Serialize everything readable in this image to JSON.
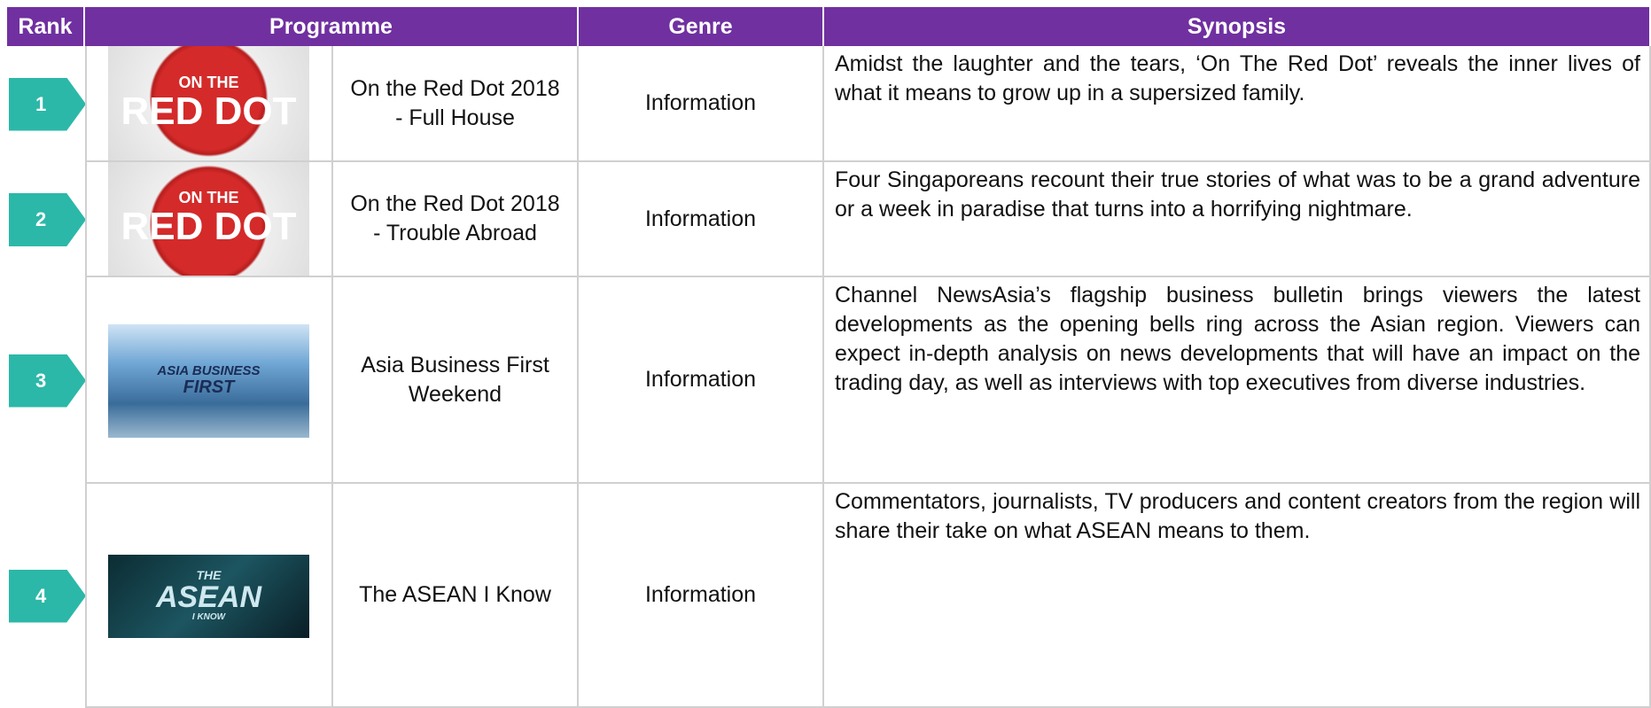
{
  "table": {
    "columns": [
      "Rank",
      "Programme",
      "Genre",
      "Synopsis"
    ],
    "rows": [
      {
        "rank": "1",
        "thumbnail": [
          "ON THE",
          "RED DOT"
        ],
        "programme": "On the Red Dot 2018 - Full House",
        "genre": "Information",
        "synopsis": "Amidst the laughter and the tears, ‘On The Red Dot’ reveals the inner lives of what it means to grow up in a supersized family."
      },
      {
        "rank": "2",
        "thumbnail": [
          "ON THE",
          "RED DOT"
        ],
        "programme": "On the Red Dot 2018 - Trouble Abroad",
        "genre": "Information",
        "synopsis": "Four Singaporeans recount their true stories of what was to be a grand adventure or a week in paradise that turns into a horrifying nightmare."
      },
      {
        "rank": "3",
        "thumbnail": [
          "ASIA BUSINESS",
          "FIRST"
        ],
        "programme": "Asia Business First Weekend",
        "genre": "Information",
        "synopsis": "Channel NewsAsia’s flagship business bulletin brings viewers the latest developments as the opening bells ring across the Asian region. Viewers can expect in-depth analysis on news developments that will have an impact on the trading day, as well as interviews with top executives from diverse industries."
      },
      {
        "rank": "4",
        "thumbnail": [
          "THE",
          "ASEAN",
          "I KNOW"
        ],
        "programme": "The ASEAN I Know",
        "genre": "Information",
        "synopsis": "Commentators, journalists, TV producers and content creators from the region will share their take on what ASEAN means to them."
      }
    ]
  }
}
